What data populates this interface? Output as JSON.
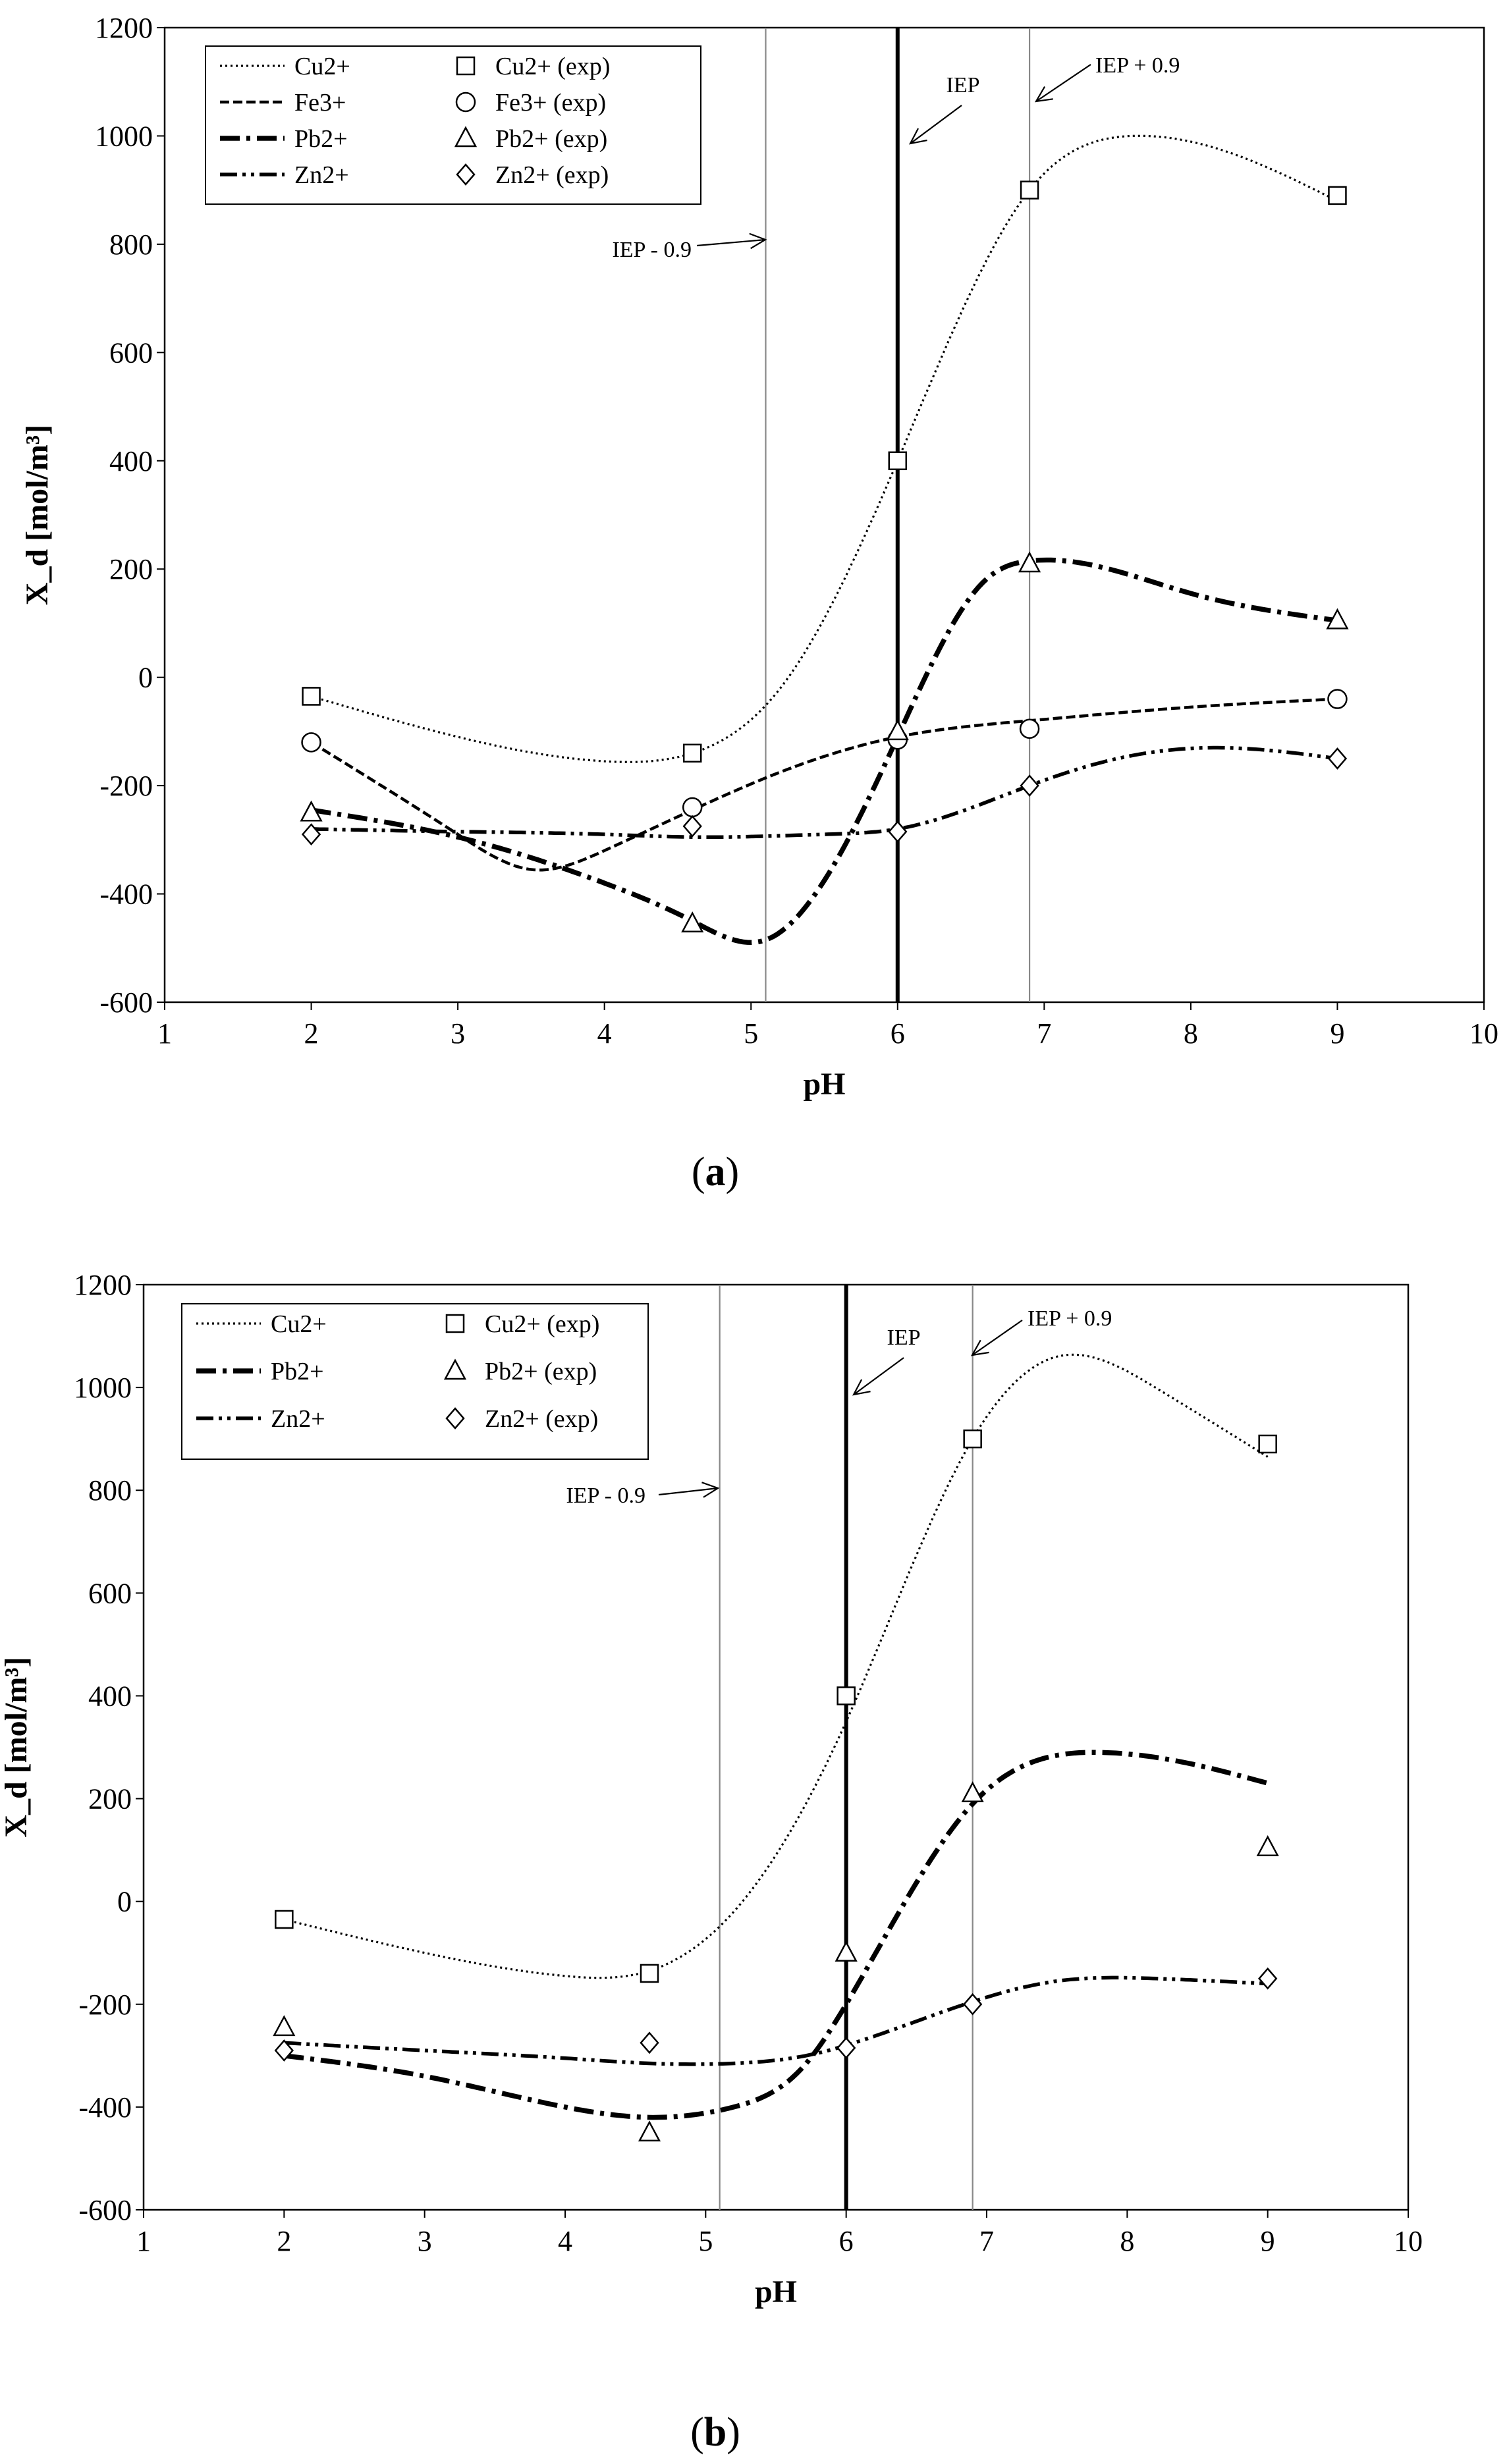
{
  "chart_data": [
    {
      "panel_label": "a",
      "type": "line",
      "xlabel": "pH",
      "ylabel": "X_d [mol/m³]",
      "xlim": [
        1,
        10
      ],
      "ylim": [
        -600,
        1200
      ],
      "x_ticks": [
        "1",
        "2",
        "3",
        "4",
        "5",
        "6",
        "7",
        "8",
        "9",
        "10"
      ],
      "y_ticks": [
        "-600",
        "-400",
        "-200",
        "0",
        "200",
        "400",
        "600",
        "800",
        "1000",
        "1200"
      ],
      "vlines": [
        {
          "x": 5.1,
          "label": "IEP - 0.9",
          "style": "thin"
        },
        {
          "x": 6.0,
          "label": "IEP",
          "style": "thick"
        },
        {
          "x": 6.9,
          "label": "IEP + 0.9",
          "style": "thin"
        }
      ],
      "series": [
        {
          "name": "Cu2+",
          "dash": "dotted",
          "x": [
            2,
            3,
            4,
            4.6,
            5.2,
            6,
            6.9,
            7.6,
            8.2,
            9
          ],
          "y": [
            -35,
            -110,
            -155,
            -140,
            -20,
            400,
            900,
            1000,
            975,
            880
          ]
        },
        {
          "name": "Fe3+",
          "dash": "dashed",
          "x": [
            2,
            3,
            3.5,
            4,
            4.6,
            5.2,
            6,
            6.9,
            8,
            9
          ],
          "y": [
            -120,
            -290,
            -355,
            -320,
            -245,
            -175,
            -110,
            -80,
            -55,
            -40
          ]
        },
        {
          "name": "Pb2+",
          "dash": "dashdot-bold",
          "x": [
            2,
            3,
            4,
            4.6,
            5.1,
            5.6,
            6,
            6.6,
            6.9,
            8,
            9
          ],
          "y": [
            -245,
            -295,
            -380,
            -450,
            -485,
            -330,
            -110,
            180,
            215,
            155,
            105
          ]
        },
        {
          "name": "Zn2+",
          "dash": "dashdotdot",
          "x": [
            2,
            3,
            4,
            4.6,
            5.5,
            6,
            6.9,
            7.5,
            8.2,
            9
          ],
          "y": [
            -280,
            -285,
            -290,
            -295,
            -290,
            -280,
            -200,
            -150,
            -130,
            -150
          ]
        }
      ],
      "experimental": [
        {
          "name": "Cu2+ (exp)",
          "marker": "square",
          "x": [
            2,
            4.6,
            6,
            6.9,
            9
          ],
          "y": [
            -35,
            -140,
            400,
            900,
            890
          ]
        },
        {
          "name": "Fe3+ (exp)",
          "marker": "circle",
          "x": [
            2,
            4.6,
            6,
            6.9,
            9
          ],
          "y": [
            -120,
            -240,
            -115,
            -95,
            -40
          ]
        },
        {
          "name": "Pb2+ (exp)",
          "marker": "triangle",
          "x": [
            2,
            4.6,
            6,
            6.9,
            9
          ],
          "y": [
            -250,
            -455,
            -100,
            210,
            105
          ]
        },
        {
          "name": "Zn2+ (exp)",
          "marker": "diamond",
          "x": [
            2,
            4.6,
            6,
            6.9,
            9
          ],
          "y": [
            -290,
            -275,
            -285,
            -200,
            -150
          ]
        }
      ]
    },
    {
      "panel_label": "b",
      "type": "line",
      "xlabel": "pH",
      "ylabel": "X_d [mol/m³]",
      "xlim": [
        1,
        10
      ],
      "ylim": [
        -600,
        1200
      ],
      "x_ticks": [
        "1",
        "2",
        "3",
        "4",
        "5",
        "6",
        "7",
        "8",
        "9",
        "10"
      ],
      "y_ticks": [
        "-600",
        "-400",
        "-200",
        "0",
        "200",
        "400",
        "600",
        "800",
        "1000",
        "1200"
      ],
      "vlines": [
        {
          "x": 5.1,
          "label": "IEP - 0.9",
          "style": "thin"
        },
        {
          "x": 6.0,
          "label": "IEP",
          "style": "thick"
        },
        {
          "x": 6.9,
          "label": "IEP + 0.9",
          "style": "thin"
        }
      ],
      "series": [
        {
          "name": "Cu2+",
          "dash": "dotted",
          "x": [
            2,
            3,
            4,
            4.6,
            5.2,
            6,
            6.9,
            7.5,
            8.2,
            9
          ],
          "y": [
            -35,
            -100,
            -145,
            -135,
            -20,
            350,
            900,
            1060,
            1000,
            865
          ]
        },
        {
          "name": "Pb2+",
          "dash": "dashdot-bold",
          "x": [
            2,
            3,
            4,
            4.6,
            5.2,
            5.7,
            6,
            6.9,
            7.8,
            8.5,
            9
          ],
          "y": [
            -300,
            -340,
            -400,
            -420,
            -400,
            -320,
            -200,
            190,
            290,
            265,
            230
          ]
        },
        {
          "name": "Zn2+",
          "dash": "dashdotdot",
          "x": [
            2,
            3,
            4,
            4.6,
            5.2,
            5.8,
            6,
            6.9,
            7.5,
            8.2,
            9
          ],
          "y": [
            -275,
            -290,
            -305,
            -315,
            -315,
            -295,
            -280,
            -195,
            -155,
            -150,
            -160
          ]
        }
      ],
      "experimental": [
        {
          "name": "Cu2+ (exp)",
          "marker": "square",
          "x": [
            2,
            4.6,
            6,
            6.9,
            9
          ],
          "y": [
            -35,
            -140,
            400,
            900,
            890
          ]
        },
        {
          "name": "Pb2+ (exp)",
          "marker": "triangle",
          "x": [
            2,
            4.6,
            6,
            6.9,
            9
          ],
          "y": [
            -245,
            -450,
            -100,
            210,
            105
          ]
        },
        {
          "name": "Zn2+ (exp)",
          "marker": "diamond",
          "x": [
            2,
            4.6,
            6,
            6.9,
            9
          ],
          "y": [
            -290,
            -275,
            -285,
            -200,
            -150
          ]
        }
      ]
    }
  ]
}
